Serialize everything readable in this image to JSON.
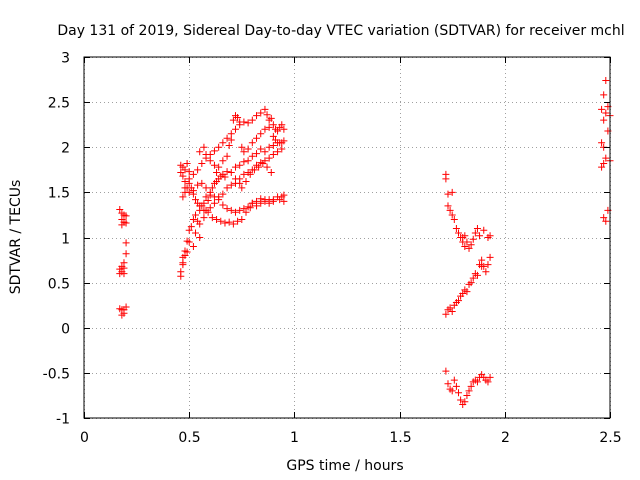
{
  "chart_data": {
    "type": "scatter",
    "title": "Day 131 of 2019, Sidereal Day-to-day VTEC variation (SDTVAR) for receiver mchl",
    "xlabel": "GPS time / hours",
    "ylabel": "SDTVAR / TECUs",
    "xlim": [
      0,
      2.5
    ],
    "ylim": [
      -1,
      3
    ],
    "xticks": [
      0,
      0.5,
      1,
      1.5,
      2,
      2.5
    ],
    "xtick_labels": [
      "0",
      "0.5",
      "1",
      "1.5",
      "2",
      "2.5"
    ],
    "yticks": [
      -1,
      -0.5,
      0,
      0.5,
      1,
      1.5,
      2,
      2.5,
      3
    ],
    "ytick_labels": [
      "-1",
      "-0.5",
      "0",
      "0.5",
      "1",
      "1.5",
      "2",
      "2.5",
      "3"
    ],
    "grid": true,
    "marker": "+",
    "series": [
      {
        "name": "SDTVAR",
        "color": "#ff0000",
        "points": [
          [
            0.17,
            1.31
          ],
          [
            0.18,
            1.27
          ],
          [
            0.18,
            1.2
          ],
          [
            0.19,
            1.25
          ],
          [
            0.19,
            1.17
          ],
          [
            0.2,
            1.24
          ],
          [
            0.2,
            1.16
          ],
          [
            0.18,
            1.14
          ],
          [
            0.17,
            0.65
          ],
          [
            0.17,
            0.6
          ],
          [
            0.18,
            0.62
          ],
          [
            0.18,
            0.68
          ],
          [
            0.19,
            0.72
          ],
          [
            0.19,
            0.6
          ],
          [
            0.2,
            0.82
          ],
          [
            0.2,
            0.94
          ],
          [
            0.19,
            0.66
          ],
          [
            0.17,
            0.21
          ],
          [
            0.18,
            0.14
          ],
          [
            0.18,
            0.2
          ],
          [
            0.19,
            0.16
          ],
          [
            0.2,
            0.23
          ],
          [
            0.19,
            0.2
          ],
          [
            0.46,
            0.57
          ],
          [
            0.46,
            0.62
          ],
          [
            0.47,
            0.72
          ],
          [
            0.47,
            0.78
          ],
          [
            0.48,
            0.8
          ],
          [
            0.49,
            0.84
          ],
          [
            0.49,
            0.96
          ],
          [
            0.5,
            1.08
          ],
          [
            0.51,
            1.12
          ],
          [
            0.52,
            1.2
          ],
          [
            0.53,
            1.25
          ],
          [
            0.54,
            1.18
          ],
          [
            0.55,
            1.3
          ],
          [
            0.56,
            1.35
          ],
          [
            0.57,
            1.38
          ],
          [
            0.58,
            1.45
          ],
          [
            0.59,
            1.41
          ],
          [
            0.6,
            1.47
          ],
          [
            0.61,
            1.55
          ],
          [
            0.62,
            1.6
          ],
          [
            0.63,
            1.62
          ],
          [
            0.64,
            1.65
          ],
          [
            0.65,
            1.68
          ],
          [
            0.66,
            1.7
          ],
          [
            0.67,
            1.67
          ],
          [
            0.68,
            1.73
          ],
          [
            0.7,
            1.72
          ],
          [
            0.72,
            1.78
          ],
          [
            0.74,
            1.8
          ],
          [
            0.76,
            1.84
          ],
          [
            0.78,
            1.85
          ],
          [
            0.8,
            1.9
          ],
          [
            0.82,
            1.93
          ],
          [
            0.84,
            1.98
          ],
          [
            0.86,
            1.95
          ],
          [
            0.88,
            2.0
          ],
          [
            0.9,
            2.02
          ],
          [
            0.92,
            2.05
          ],
          [
            0.94,
            2.05
          ],
          [
            0.95,
            2.07
          ],
          [
            0.47,
            0.7
          ],
          [
            0.48,
            0.85
          ],
          [
            0.5,
            0.95
          ],
          [
            0.52,
            0.9
          ],
          [
            0.53,
            1.05
          ],
          [
            0.55,
            1.0
          ],
          [
            0.55,
            1.15
          ],
          [
            0.57,
            1.22
          ],
          [
            0.58,
            1.3
          ],
          [
            0.6,
            1.33
          ],
          [
            0.62,
            1.38
          ],
          [
            0.64,
            1.45
          ],
          [
            0.66,
            1.48
          ],
          [
            0.68,
            1.55
          ],
          [
            0.7,
            1.58
          ],
          [
            0.72,
            1.6
          ],
          [
            0.74,
            1.65
          ],
          [
            0.76,
            1.7
          ],
          [
            0.78,
            1.72
          ],
          [
            0.8,
            1.75
          ],
          [
            0.82,
            1.8
          ],
          [
            0.84,
            1.83
          ],
          [
            0.86,
            1.85
          ],
          [
            0.88,
            1.88
          ],
          [
            0.9,
            1.92
          ],
          [
            0.92,
            1.95
          ],
          [
            0.94,
            1.98
          ],
          [
            0.46,
            1.8
          ],
          [
            0.46,
            1.72
          ],
          [
            0.47,
            1.78
          ],
          [
            0.47,
            1.68
          ],
          [
            0.48,
            1.62
          ],
          [
            0.48,
            1.75
          ],
          [
            0.49,
            1.82
          ],
          [
            0.5,
            1.73
          ],
          [
            0.5,
            1.6
          ],
          [
            0.51,
            1.55
          ],
          [
            0.52,
            1.48
          ],
          [
            0.53,
            1.42
          ],
          [
            0.54,
            1.38
          ],
          [
            0.55,
            1.35
          ],
          [
            0.57,
            1.3
          ],
          [
            0.59,
            1.28
          ],
          [
            0.61,
            1.22
          ],
          [
            0.63,
            1.2
          ],
          [
            0.65,
            1.18
          ],
          [
            0.67,
            1.16
          ],
          [
            0.69,
            1.17
          ],
          [
            0.71,
            1.15
          ],
          [
            0.73,
            1.18
          ],
          [
            0.75,
            1.2
          ],
          [
            0.77,
            1.28
          ],
          [
            0.79,
            1.33
          ],
          [
            0.8,
            1.38
          ],
          [
            0.82,
            1.4
          ],
          [
            0.84,
            1.43
          ],
          [
            0.86,
            1.4
          ],
          [
            0.88,
            1.42
          ],
          [
            0.9,
            1.42
          ],
          [
            0.92,
            1.45
          ],
          [
            0.94,
            1.45
          ],
          [
            0.95,
            1.47
          ],
          [
            0.47,
            1.45
          ],
          [
            0.48,
            1.5
          ],
          [
            0.49,
            1.55
          ],
          [
            0.5,
            1.5
          ],
          [
            0.52,
            1.52
          ],
          [
            0.54,
            1.58
          ],
          [
            0.56,
            1.6
          ],
          [
            0.58,
            1.55
          ],
          [
            0.6,
            1.5
          ],
          [
            0.62,
            1.45
          ],
          [
            0.64,
            1.42
          ],
          [
            0.66,
            1.36
          ],
          [
            0.68,
            1.32
          ],
          [
            0.7,
            1.3
          ],
          [
            0.72,
            1.28
          ],
          [
            0.74,
            1.3
          ],
          [
            0.76,
            1.32
          ],
          [
            0.78,
            1.34
          ],
          [
            0.8,
            1.38
          ],
          [
            0.82,
            1.35
          ],
          [
            0.84,
            1.38
          ],
          [
            0.86,
            1.42
          ],
          [
            0.88,
            1.38
          ],
          [
            0.9,
            1.4
          ],
          [
            0.93,
            1.42
          ],
          [
            0.95,
            1.4
          ],
          [
            0.48,
            1.55
          ],
          [
            0.5,
            1.65
          ],
          [
            0.52,
            1.7
          ],
          [
            0.54,
            1.75
          ],
          [
            0.56,
            1.82
          ],
          [
            0.58,
            1.88
          ],
          [
            0.6,
            1.92
          ],
          [
            0.62,
            1.96
          ],
          [
            0.64,
            2.0
          ],
          [
            0.66,
            2.05
          ],
          [
            0.68,
            2.1
          ],
          [
            0.7,
            2.15
          ],
          [
            0.72,
            2.2
          ],
          [
            0.74,
            2.25
          ],
          [
            0.76,
            2.28
          ],
          [
            0.78,
            2.27
          ],
          [
            0.8,
            2.3
          ],
          [
            0.82,
            2.35
          ],
          [
            0.84,
            2.38
          ],
          [
            0.86,
            2.42
          ],
          [
            0.87,
            2.36
          ],
          [
            0.88,
            2.3
          ],
          [
            0.89,
            2.32
          ],
          [
            0.9,
            2.25
          ],
          [
            0.91,
            2.2
          ],
          [
            0.92,
            2.18
          ],
          [
            0.93,
            2.22
          ],
          [
            0.94,
            2.25
          ],
          [
            0.95,
            2.2
          ],
          [
            0.55,
            1.95
          ],
          [
            0.57,
            2.0
          ],
          [
            0.58,
            1.92
          ],
          [
            0.6,
            1.85
          ],
          [
            0.62,
            1.8
          ],
          [
            0.63,
            1.72
          ],
          [
            0.64,
            1.78
          ],
          [
            0.66,
            1.85
          ],
          [
            0.68,
            1.9
          ],
          [
            0.69,
            2.02
          ],
          [
            0.7,
            2.08
          ],
          [
            0.71,
            2.3
          ],
          [
            0.72,
            2.35
          ],
          [
            0.73,
            2.33
          ],
          [
            0.74,
            2.28
          ],
          [
            0.75,
            2.0
          ],
          [
            0.76,
            1.95
          ],
          [
            0.78,
            1.98
          ],
          [
            0.8,
            2.05
          ],
          [
            0.82,
            2.1
          ],
          [
            0.84,
            2.15
          ],
          [
            0.86,
            2.2
          ],
          [
            0.88,
            2.22
          ],
          [
            0.9,
            2.12
          ],
          [
            0.91,
            2.08
          ],
          [
            0.93,
            2.05
          ],
          [
            0.72,
            1.65
          ],
          [
            0.74,
            1.6
          ],
          [
            0.75,
            1.55
          ],
          [
            0.77,
            1.62
          ],
          [
            0.79,
            1.7
          ],
          [
            0.81,
            1.75
          ],
          [
            0.83,
            1.78
          ],
          [
            0.85,
            1.82
          ],
          [
            0.87,
            1.78
          ],
          [
            0.89,
            1.72
          ],
          [
            1.72,
            1.7
          ],
          [
            1.72,
            1.65
          ],
          [
            1.73,
            1.48
          ],
          [
            1.73,
            1.35
          ],
          [
            1.74,
            1.3
          ],
          [
            1.75,
            1.25
          ],
          [
            1.75,
            1.5
          ],
          [
            1.76,
            1.2
          ],
          [
            1.77,
            1.1
          ],
          [
            1.78,
            1.05
          ],
          [
            1.79,
            1.0
          ],
          [
            1.8,
            0.95
          ],
          [
            1.81,
            0.9
          ],
          [
            1.82,
            0.95
          ],
          [
            1.83,
            0.88
          ],
          [
            1.84,
            0.92
          ],
          [
            1.85,
            0.98
          ],
          [
            1.86,
            1.05
          ],
          [
            1.87,
            1.1
          ],
          [
            1.88,
            1.02
          ],
          [
            1.89,
            0.75
          ],
          [
            1.9,
            0.68
          ],
          [
            1.91,
            0.62
          ],
          [
            1.92,
            0.7
          ],
          [
            1.93,
            0.78
          ],
          [
            1.92,
            1.0
          ],
          [
            1.93,
            1.02
          ],
          [
            1.9,
            1.08
          ],
          [
            1.72,
            0.15
          ],
          [
            1.73,
            0.2
          ],
          [
            1.74,
            0.22
          ],
          [
            1.75,
            0.18
          ],
          [
            1.76,
            0.25
          ],
          [
            1.77,
            0.28
          ],
          [
            1.78,
            0.3
          ],
          [
            1.79,
            0.35
          ],
          [
            1.8,
            0.38
          ],
          [
            1.81,
            0.42
          ],
          [
            1.82,
            0.4
          ],
          [
            1.83,
            0.48
          ],
          [
            1.84,
            0.5
          ],
          [
            1.85,
            0.55
          ],
          [
            1.86,
            0.6
          ],
          [
            1.87,
            0.58
          ],
          [
            1.88,
            0.7
          ],
          [
            1.89,
            0.68
          ],
          [
            1.8,
            1.0
          ],
          [
            1.81,
            1.02
          ],
          [
            1.72,
            -0.48
          ],
          [
            1.73,
            -0.62
          ],
          [
            1.74,
            -0.68
          ],
          [
            1.75,
            -0.7
          ],
          [
            1.76,
            -0.58
          ],
          [
            1.77,
            -0.65
          ],
          [
            1.78,
            -0.72
          ],
          [
            1.79,
            -0.8
          ],
          [
            1.8,
            -0.85
          ],
          [
            1.81,
            -0.82
          ],
          [
            1.82,
            -0.75
          ],
          [
            1.83,
            -0.7
          ],
          [
            1.84,
            -0.65
          ],
          [
            1.85,
            -0.6
          ],
          [
            1.86,
            -0.58
          ],
          [
            1.87,
            -0.6
          ],
          [
            1.88,
            -0.55
          ],
          [
            1.89,
            -0.52
          ],
          [
            1.9,
            -0.55
          ],
          [
            1.91,
            -0.58
          ],
          [
            1.92,
            -0.6
          ],
          [
            1.93,
            -0.55
          ],
          [
            2.46,
            2.42
          ],
          [
            2.47,
            2.58
          ],
          [
            2.48,
            2.74
          ],
          [
            2.48,
            2.38
          ],
          [
            2.47,
            2.3
          ],
          [
            2.49,
            2.45
          ],
          [
            2.5,
            2.35
          ],
          [
            2.46,
            2.05
          ],
          [
            2.47,
            2.0
          ],
          [
            2.49,
            2.18
          ],
          [
            2.48,
            1.88
          ],
          [
            2.47,
            1.82
          ],
          [
            2.46,
            1.78
          ],
          [
            2.5,
            1.85
          ],
          [
            2.49,
            1.3
          ],
          [
            2.47,
            1.22
          ],
          [
            2.48,
            1.18
          ]
        ]
      }
    ]
  }
}
